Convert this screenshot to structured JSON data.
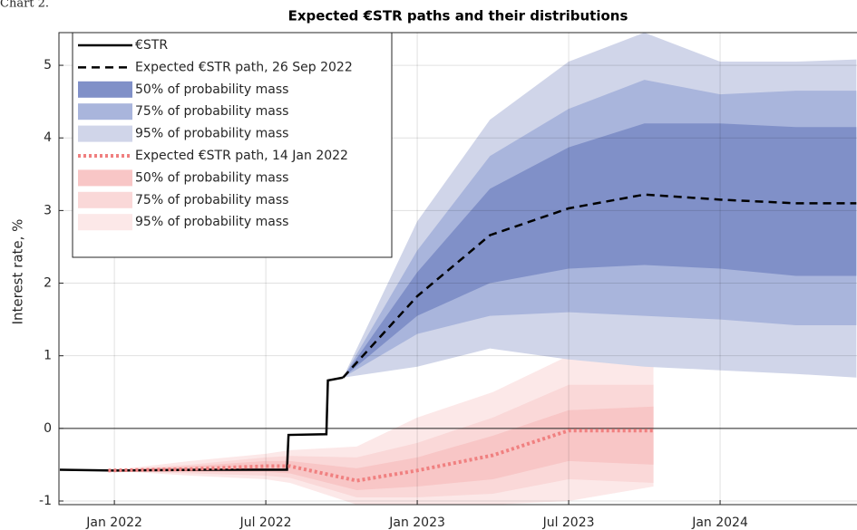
{
  "chart_data": {
    "type": "band-line",
    "caption": "Chart 2.",
    "title": "Expected €STR paths and their distributions",
    "y_label": "Interest rate, %",
    "xlim": [
      2021.817,
      2024.452
    ],
    "xticks": [
      {
        "value": 2022.0,
        "label": "Jan 2022"
      },
      {
        "value": 2022.5,
        "label": "Jul 2022"
      },
      {
        "value": 2023.0,
        "label": "Jan 2023"
      },
      {
        "value": 2023.5,
        "label": "Jul 2023"
      },
      {
        "value": 2024.0,
        "label": "Jan 2024"
      }
    ],
    "ylim": [
      -1.05,
      5.45
    ],
    "yticks": [
      -1,
      0,
      1,
      2,
      3,
      4,
      5
    ],
    "grid": true,
    "hline": 0,
    "legend": "upper left",
    "series": [
      {
        "name": "€STR",
        "kind": "line",
        "style": "solid",
        "color": "#000000",
        "x": [
          2021.82,
          2022.0,
          2022.3,
          2022.57,
          2022.575,
          2022.7,
          2022.705,
          2022.755
        ],
        "values": [
          -0.57,
          -0.58,
          -0.57,
          -0.57,
          -0.09,
          -0.08,
          0.66,
          0.7
        ]
      },
      {
        "name": "Expected €STR path,  26 Sep 2022",
        "kind": "line",
        "style": "dashed",
        "color": "#000000",
        "x": [
          2022.755,
          2023.0,
          2023.24,
          2023.5,
          2023.75,
          2024.0,
          2024.25,
          2024.45
        ],
        "values": [
          0.7,
          1.82,
          2.66,
          3.03,
          3.22,
          3.15,
          3.1,
          3.1
        ]
      },
      {
        "name": "50% of probability mass",
        "kind": "band",
        "color": "#8090c8",
        "x": [
          2022.755,
          2023.0,
          2023.24,
          2023.5,
          2023.75,
          2024.0,
          2024.25,
          2024.45
        ],
        "low": [
          0.7,
          1.55,
          2.0,
          2.2,
          2.25,
          2.2,
          2.1,
          2.1
        ],
        "high": [
          0.7,
          2.15,
          3.3,
          3.87,
          4.2,
          4.2,
          4.15,
          4.15
        ]
      },
      {
        "name": "75% of probability mass",
        "kind": "band",
        "color": "#a9b5dc",
        "x": [
          2022.755,
          2023.0,
          2023.24,
          2023.5,
          2023.75,
          2024.0,
          2024.25,
          2024.45
        ],
        "low": [
          0.7,
          1.3,
          1.55,
          1.6,
          1.55,
          1.5,
          1.42,
          1.42
        ],
        "high": [
          0.7,
          2.45,
          3.75,
          4.4,
          4.8,
          4.6,
          4.65,
          4.65
        ]
      },
      {
        "name": "95% of probability mass",
        "kind": "band",
        "color": "#d0d5e9",
        "x": [
          2022.755,
          2023.0,
          2023.24,
          2023.5,
          2023.75,
          2024.0,
          2024.25,
          2024.45
        ],
        "low": [
          0.7,
          0.85,
          1.1,
          0.95,
          0.85,
          0.8,
          0.75,
          0.7
        ],
        "high": [
          0.7,
          2.85,
          4.25,
          5.05,
          5.45,
          5.05,
          5.05,
          5.08
        ]
      },
      {
        "name": "Expected €STR path,  14 Jan 2022",
        "kind": "line",
        "style": "dotted",
        "color": "#f08080",
        "x": [
          2021.98,
          2022.25,
          2022.5,
          2022.58,
          2022.8,
          2023.0,
          2023.25,
          2023.5,
          2023.78
        ],
        "values": [
          -0.58,
          -0.56,
          -0.52,
          -0.52,
          -0.72,
          -0.58,
          -0.37,
          -0.03,
          -0.03
        ]
      },
      {
        "name": "50% of probability mass",
        "kind": "band",
        "color": "#f8c6c6",
        "x": [
          2021.98,
          2022.25,
          2022.5,
          2022.58,
          2022.8,
          2023.0,
          2023.25,
          2023.5,
          2023.78
        ],
        "low": [
          -0.58,
          -0.6,
          -0.6,
          -0.62,
          -0.85,
          -0.8,
          -0.7,
          -0.45,
          -0.5
        ],
        "high": [
          -0.58,
          -0.52,
          -0.45,
          -0.45,
          -0.55,
          -0.4,
          -0.1,
          0.25,
          0.3
        ]
      },
      {
        "name": "75% of probability mass",
        "kind": "band",
        "color": "#fad8d8",
        "x": [
          2021.98,
          2022.25,
          2022.5,
          2022.58,
          2022.8,
          2023.0,
          2023.25,
          2023.5,
          2023.78
        ],
        "low": [
          -0.58,
          -0.62,
          -0.65,
          -0.68,
          -0.95,
          -0.95,
          -0.9,
          -0.7,
          -0.75
        ],
        "high": [
          -0.58,
          -0.5,
          -0.4,
          -0.38,
          -0.4,
          -0.2,
          0.15,
          0.6,
          0.6
        ]
      },
      {
        "name": "95% of probability mass",
        "kind": "band",
        "color": "#fce8e8",
        "x": [
          2021.98,
          2022.25,
          2022.5,
          2022.58,
          2022.8,
          2023.0,
          2023.25,
          2023.5,
          2023.78
        ],
        "low": [
          -0.58,
          -0.65,
          -0.7,
          -0.75,
          -1.05,
          -1.05,
          -1.05,
          -1.0,
          -0.8
        ],
        "high": [
          -0.58,
          -0.45,
          -0.35,
          -0.3,
          -0.25,
          0.15,
          0.5,
          1.0,
          1.0
        ]
      }
    ]
  }
}
